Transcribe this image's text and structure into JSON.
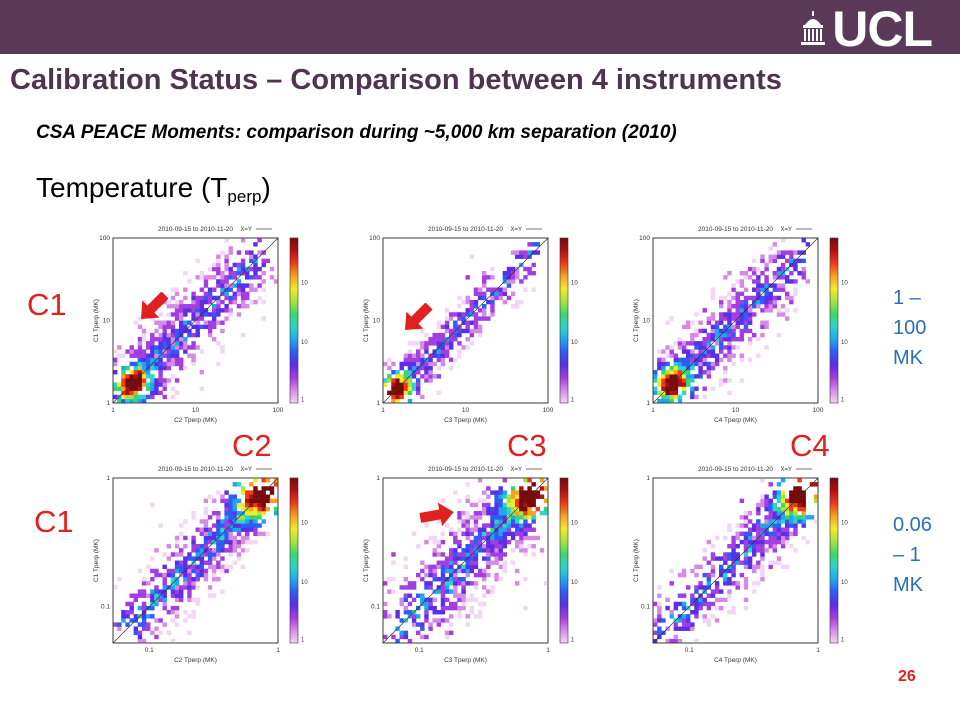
{
  "header": {
    "logo_text": "UCL",
    "title": "Calibration Status – Comparison between 4 instruments",
    "subtitle": "CSA PEACE Moments: comparison during ~5,000 km separation (2010)",
    "heading_main": "Temperature (T",
    "heading_sub": "perp",
    "heading_close": ")"
  },
  "rows": [
    {
      "label": "C1",
      "range_lines": [
        "1 –",
        "100",
        "MK"
      ]
    },
    {
      "label": "C1",
      "range_lines": [
        "0.06",
        "– 1",
        "MK"
      ]
    }
  ],
  "columns": [
    {
      "label": "C2"
    },
    {
      "label": "C3"
    },
    {
      "label": "C4"
    }
  ],
  "plot_common": {
    "date_range": "2010-09-15 to 2010-11-20",
    "legend": "X=Y"
  },
  "plots": [
    {
      "xlabel": "C2 Tperp (MK)",
      "ylabel": "C1 Tperp (MK)",
      "xticks": [
        "1",
        "10",
        "100"
      ],
      "yticks": [
        "1",
        "10",
        "100"
      ],
      "cbticks": [
        "100",
        "10",
        "1"
      ]
    },
    {
      "xlabel": "C3 Tperp (MK)",
      "ylabel": "C1 Tperp (MK)",
      "xticks": [
        "1",
        "10",
        "100"
      ],
      "yticks": [
        "1",
        "10",
        "100"
      ],
      "cbticks": [
        "100",
        "10",
        "1"
      ]
    },
    {
      "xlabel": "C4 Tperp (MK)",
      "ylabel": "C1 Tperp (MK)",
      "xticks": [
        "1",
        "10",
        "100"
      ],
      "yticks": [
        "1",
        "10",
        "100"
      ],
      "cbticks": [
        "100",
        "10",
        "1"
      ]
    },
    {
      "xlabel": "C2 Tperp (MK)",
      "ylabel": "C1 Tperp (MK)",
      "xticks": [
        "0.1",
        "1"
      ],
      "yticks": [
        "0.1",
        "1"
      ],
      "cbticks": [
        "100",
        "10",
        "1"
      ]
    },
    {
      "xlabel": "C3 Tperp (MK)",
      "ylabel": "C1 Tperp (MK)",
      "xticks": [
        "0.1",
        "1"
      ],
      "yticks": [
        "0.1",
        "1"
      ],
      "cbticks": [
        "100",
        "10",
        "1"
      ]
    },
    {
      "xlabel": "C4 Tperp (MK)",
      "ylabel": "C1 Tperp (MK)",
      "xticks": [
        "0.1",
        "1"
      ],
      "yticks": [
        "0.1",
        "1"
      ],
      "cbticks": [
        "100",
        "10",
        "1"
      ]
    }
  ],
  "page_number": "26",
  "colors": {
    "header_bar": "#5a3a58",
    "title": "#4f3450",
    "label": "#e0211f",
    "range": "#2a6fb8"
  }
}
